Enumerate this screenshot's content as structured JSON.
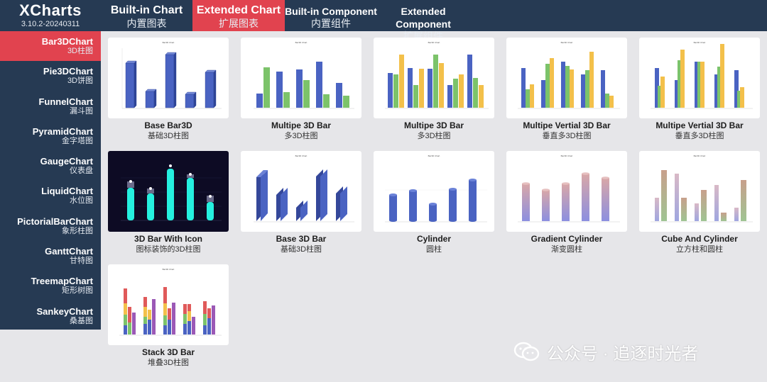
{
  "brand": {
    "title": "XCharts",
    "version": "3.10.2-20240311"
  },
  "tabs": [
    {
      "label": "Built-in Chart",
      "sub": "内置图表"
    },
    {
      "label": "Extended Chart",
      "sub": "扩展图表"
    },
    {
      "label": "Built-in Component",
      "sub": "内置组件"
    },
    {
      "label": "Extended Component",
      "sub": "扩展组件"
    }
  ],
  "sidebar": [
    {
      "label": "Bar3DChart",
      "sub": "3D柱图"
    },
    {
      "label": "Pie3DChart",
      "sub": "3D饼图"
    },
    {
      "label": "FunnelChart",
      "sub": "漏斗图"
    },
    {
      "label": "PyramidChart",
      "sub": "金字塔图"
    },
    {
      "label": "GaugeChart",
      "sub": "仪表盘"
    },
    {
      "label": "LiquidChart",
      "sub": "水位图"
    },
    {
      "label": "PictorialBarChart",
      "sub": "象形柱图"
    },
    {
      "label": "GanttChart",
      "sub": "甘特图"
    },
    {
      "label": "TreemapChart",
      "sub": "矩形树图"
    },
    {
      "label": "SankeyChart",
      "sub": "桑基图"
    }
  ],
  "cards": [
    {
      "title": "Base Bar3D",
      "sub": "基础3D柱图",
      "thumb_title": "Bar3D Chart"
    },
    {
      "title": "Multipe 3D Bar",
      "sub": "多3D柱图",
      "thumb_title": "Bar3D Chart"
    },
    {
      "title": "Multipe 3D Bar",
      "sub": "多3D柱图",
      "thumb_title": "Bar3D Chart"
    },
    {
      "title": "Multipe Vertial 3D Bar",
      "sub": "垂直多3D柱图",
      "thumb_title": "Bar3D Chart"
    },
    {
      "title": "Multipe Vertial 3D Bar",
      "sub": "垂直多3D柱图",
      "thumb_title": "Bar3D Chart"
    },
    {
      "title": "3D Bar With Icon",
      "sub": "图标装饰的3D柱图",
      "thumb_title": ""
    },
    {
      "title": "Base 3D Bar",
      "sub": "基础3D柱图",
      "thumb_title": "Bar3D Chart"
    },
    {
      "title": "Cylinder",
      "sub": "圆柱",
      "thumb_title": "Bar3D Chart"
    },
    {
      "title": "Gradient Cylinder",
      "sub": "渐变圆柱",
      "thumb_title": "Bar3D Chart"
    },
    {
      "title": "Cube And Cylinder",
      "sub": "立方柱和圆柱",
      "thumb_title": "Bar3D Chart"
    },
    {
      "title": "Stack 3D Bar",
      "sub": "堆叠3D柱图",
      "thumb_title": "Bar3D Chart"
    }
  ],
  "watermark": {
    "text": "公众号 · 追逐时光者",
    "icon": "wechat-icon"
  },
  "colors": {
    "nav_bg": "#263a53",
    "active": "#e1434f",
    "content_bg": "#e6e6e9",
    "blue": "#4a63c2",
    "green": "#7cc36a",
    "yellow": "#f3c04a",
    "cyan": "#25f0e0"
  }
}
